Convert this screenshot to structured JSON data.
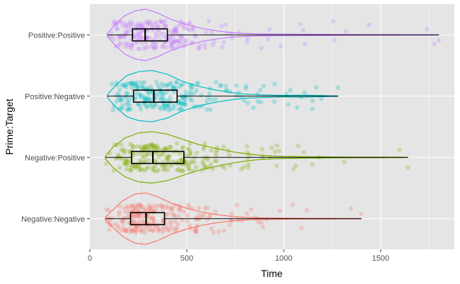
{
  "chart_data": {
    "type": "violin",
    "xlabel": "Time",
    "ylabel": "Prime:Target",
    "xlim": [
      0,
      1880
    ],
    "xticks": [
      0,
      500,
      1000,
      1500
    ],
    "grid": true,
    "background": "#e5e5e5",
    "categories": [
      "Negative:Negative",
      "Negative:Positive",
      "Positive:Negative",
      "Positive:Positive"
    ],
    "series": [
      {
        "name": "Negative:Negative",
        "color": "#f8766d",
        "min": 80,
        "q1": 210,
        "median": 290,
        "q3": 385,
        "max": 1400,
        "density": [
          [
            80,
            0.05
          ],
          [
            120,
            0.35
          ],
          [
            170,
            0.7
          ],
          [
            230,
            0.95
          ],
          [
            290,
            1.0
          ],
          [
            350,
            0.85
          ],
          [
            420,
            0.6
          ],
          [
            500,
            0.4
          ],
          [
            580,
            0.25
          ],
          [
            660,
            0.15
          ],
          [
            740,
            0.08
          ],
          [
            820,
            0.04
          ],
          [
            900,
            0.03
          ],
          [
            1000,
            0.02
          ],
          [
            1200,
            0.01
          ],
          [
            1400,
            0.005
          ]
        ]
      },
      {
        "name": "Negative:Positive",
        "color": "#7cae00",
        "min": 80,
        "q1": 215,
        "median": 325,
        "q3": 485,
        "max": 1640,
        "density": [
          [
            80,
            0.05
          ],
          [
            120,
            0.4
          ],
          [
            180,
            0.75
          ],
          [
            250,
            0.95
          ],
          [
            320,
            1.0
          ],
          [
            400,
            0.9
          ],
          [
            480,
            0.7
          ],
          [
            560,
            0.5
          ],
          [
            650,
            0.35
          ],
          [
            750,
            0.2
          ],
          [
            850,
            0.1
          ],
          [
            950,
            0.05
          ],
          [
            1100,
            0.03
          ],
          [
            1300,
            0.015
          ],
          [
            1500,
            0.01
          ],
          [
            1640,
            0.005
          ]
        ]
      },
      {
        "name": "Positive:Negative",
        "color": "#00bfc4",
        "min": 90,
        "q1": 225,
        "median": 330,
        "q3": 450,
        "max": 1280,
        "density": [
          [
            90,
            0.05
          ],
          [
            130,
            0.4
          ],
          [
            190,
            0.8
          ],
          [
            250,
            0.95
          ],
          [
            320,
            1.0
          ],
          [
            400,
            0.85
          ],
          [
            470,
            0.6
          ],
          [
            550,
            0.4
          ],
          [
            640,
            0.25
          ],
          [
            720,
            0.15
          ],
          [
            800,
            0.08
          ],
          [
            900,
            0.05
          ],
          [
            1000,
            0.03
          ],
          [
            1100,
            0.04
          ],
          [
            1200,
            0.02
          ],
          [
            1280,
            0.005
          ]
        ]
      },
      {
        "name": "Positive:Positive",
        "color": "#c77cff",
        "min": 90,
        "q1": 220,
        "median": 285,
        "q3": 400,
        "max": 1800,
        "density": [
          [
            90,
            0.05
          ],
          [
            130,
            0.4
          ],
          [
            180,
            0.75
          ],
          [
            240,
            0.95
          ],
          [
            290,
            1.0
          ],
          [
            350,
            0.85
          ],
          [
            420,
            0.6
          ],
          [
            500,
            0.4
          ],
          [
            580,
            0.25
          ],
          [
            660,
            0.15
          ],
          [
            740,
            0.08
          ],
          [
            850,
            0.04
          ],
          [
            1000,
            0.03
          ],
          [
            1200,
            0.02
          ],
          [
            1500,
            0.01
          ],
          [
            1800,
            0.005
          ]
        ]
      }
    ]
  }
}
